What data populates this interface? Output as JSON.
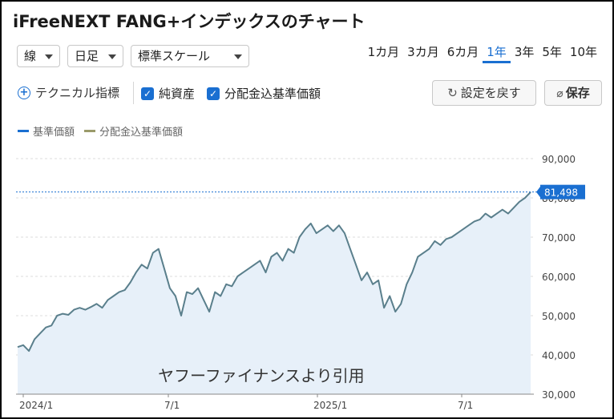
{
  "title": "iFreeNEXT FANG+インデックスのチャート",
  "controls": {
    "line_type": "線",
    "interval": "日足",
    "scale": "標準スケール"
  },
  "periods": [
    {
      "label": "1カ月",
      "active": false
    },
    {
      "label": "3カ月",
      "active": false
    },
    {
      "label": "6カ月",
      "active": false
    },
    {
      "label": "1年",
      "active": true
    },
    {
      "label": "3年",
      "active": false
    },
    {
      "label": "5年",
      "active": false
    },
    {
      "label": "10年",
      "active": false
    }
  ],
  "toolbar": {
    "technical_label": "テクニカル指標",
    "net_assets_label": "純資産",
    "net_assets_checked": true,
    "dividend_label": "分配金込基準価額",
    "dividend_checked": true,
    "reset_label": "設定を戻す",
    "save_label": "保存"
  },
  "legend": [
    {
      "name": "基準価額",
      "color": "#1a6fd1"
    },
    {
      "name": "分配金込基準価額",
      "color": "#9a9a6a"
    }
  ],
  "watermark": "ヤフーファイナンスより引用",
  "colors": {
    "accent": "#1a6fd1",
    "line": "#5a7f8c",
    "area": "#e7f0f9",
    "current_price_bg": "#1a6fd1"
  },
  "chart_data": {
    "type": "area",
    "y_ticks": [
      "90,000",
      "80,000",
      "70,000",
      "60,000",
      "50,000",
      "40,000",
      "30,000"
    ],
    "ylim": [
      30000,
      90000
    ],
    "x_ticks": [
      "2024/1",
      "7/1",
      "2025/1",
      "7/1"
    ],
    "current_value_label": "81,498",
    "current_value": 81498,
    "grid": true,
    "series": [
      {
        "values": [
          42000,
          42500,
          41000,
          44000,
          45500,
          47000,
          47500,
          50000,
          50500,
          50200,
          51500,
          52000,
          51500,
          52200,
          53000,
          52000,
          54000,
          55000,
          56000,
          56500,
          58500,
          61000,
          63000,
          62000,
          66000,
          67000,
          62000,
          57000,
          55000,
          50000,
          56000,
          55500,
          57000,
          54000,
          51000,
          56000,
          55000,
          58000,
          57500,
          60000,
          61000,
          62000,
          63000,
          64000,
          61000,
          65000,
          66000,
          64000,
          67000,
          66000,
          70000,
          72000,
          73500,
          71000,
          72000,
          73000,
          71500,
          73000,
          71000,
          67000,
          63000,
          59000,
          61000,
          58000,
          59000,
          52000,
          55000,
          51000,
          53000,
          58000,
          61000,
          65000,
          66000,
          67000,
          69000,
          68000,
          69500,
          70000,
          71000,
          72000,
          73000,
          74000,
          74500,
          76000,
          75000,
          76000,
          77000,
          76000,
          77500,
          79000,
          80000,
          81498
        ]
      }
    ]
  }
}
